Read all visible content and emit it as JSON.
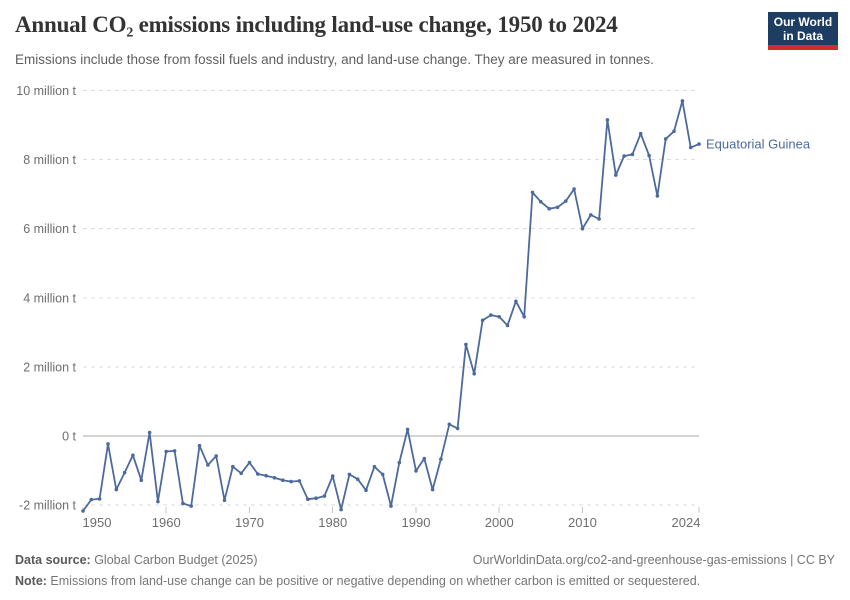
{
  "header": {
    "title": "Annual CO₂ emissions including land-use change, 1950 to 2024",
    "subtitle": "Emissions include those from fossil fuels and industry, and land-use change. They are measured in tonnes.",
    "logo": {
      "line1": "Our World",
      "line2": "in Data"
    }
  },
  "chart_data": {
    "type": "line",
    "title": "Annual CO₂ emissions including land-use change, 1950 to 2024",
    "xlabel": "",
    "ylabel": "",
    "xlim": [
      1950,
      2024
    ],
    "ylim": [
      -2.35,
      10
    ],
    "grid": "horizontal-dashed",
    "zero_line": true,
    "legend_position": "end-of-line-label",
    "x_ticks": [
      1950,
      1960,
      1970,
      1980,
      1990,
      2000,
      2010,
      2024
    ],
    "y_ticks": [
      {
        "value": 10,
        "label": "10 million t"
      },
      {
        "value": 8,
        "label": "8 million t"
      },
      {
        "value": 6,
        "label": "6 million t"
      },
      {
        "value": 4,
        "label": "4 million t"
      },
      {
        "value": 2,
        "label": "2 million t"
      },
      {
        "value": 0,
        "label": "0 t"
      },
      {
        "value": -2,
        "label": "-2 million t"
      }
    ],
    "series": [
      {
        "name": "Equatorial Guinea",
        "color": "#4C6A9C",
        "unit": "million tonnes",
        "x": [
          1950,
          1951,
          1952,
          1953,
          1954,
          1955,
          1956,
          1957,
          1958,
          1959,
          1960,
          1961,
          1962,
          1963,
          1964,
          1965,
          1966,
          1967,
          1968,
          1969,
          1970,
          1971,
          1972,
          1973,
          1974,
          1975,
          1976,
          1977,
          1978,
          1979,
          1980,
          1981,
          1982,
          1983,
          1984,
          1985,
          1986,
          1987,
          1988,
          1989,
          1990,
          1991,
          1992,
          1993,
          1994,
          1995,
          1996,
          1997,
          1998,
          1999,
          2000,
          2001,
          2002,
          2003,
          2004,
          2005,
          2006,
          2007,
          2008,
          2009,
          2010,
          2011,
          2012,
          2013,
          2014,
          2015,
          2016,
          2017,
          2018,
          2019,
          2020,
          2021,
          2022,
          2023,
          2024
        ],
        "values": [
          -2.17,
          -1.84,
          -1.82,
          -0.23,
          -1.55,
          -1.06,
          -0.56,
          -1.28,
          0.1,
          -1.9,
          -0.45,
          -0.43,
          -1.95,
          -2.03,
          -0.28,
          -0.84,
          -0.58,
          -1.86,
          -0.89,
          -1.08,
          -0.77,
          -1.1,
          -1.15,
          -1.21,
          -1.28,
          -1.32,
          -1.3,
          -1.83,
          -1.8,
          -1.74,
          -1.16,
          -2.13,
          -1.11,
          -1.25,
          -1.57,
          -0.89,
          -1.11,
          -2.03,
          -0.77,
          0.19,
          -1.01,
          -0.65,
          -1.55,
          -0.67,
          0.34,
          0.22,
          2.65,
          1.8,
          3.35,
          3.5,
          3.45,
          3.2,
          3.9,
          3.45,
          7.05,
          6.78,
          6.58,
          6.62,
          6.8,
          7.15,
          6.0,
          6.4,
          6.28,
          9.15,
          7.55,
          8.1,
          8.15,
          8.75,
          8.12,
          6.95,
          8.6,
          8.82,
          9.7,
          8.35,
          8.45
        ]
      }
    ]
  },
  "colors": {
    "line": "#4C6A9C",
    "grid": "#dcdcdc",
    "zero_line": "#a8a8a8",
    "tick_text": "#6e6e6e",
    "logo_bg": "#1d3d63",
    "logo_red": "#cf2e2e"
  },
  "footer": {
    "source_label": "Data source:",
    "source_value": " Global Carbon Budget (2025)",
    "link": "OurWorldinData.org/co2-and-greenhouse-gas-emissions | CC BY",
    "note_label": "Note:",
    "note_value": " Emissions from land-use change can be positive or negative depending on whether carbon is emitted or sequestered."
  }
}
